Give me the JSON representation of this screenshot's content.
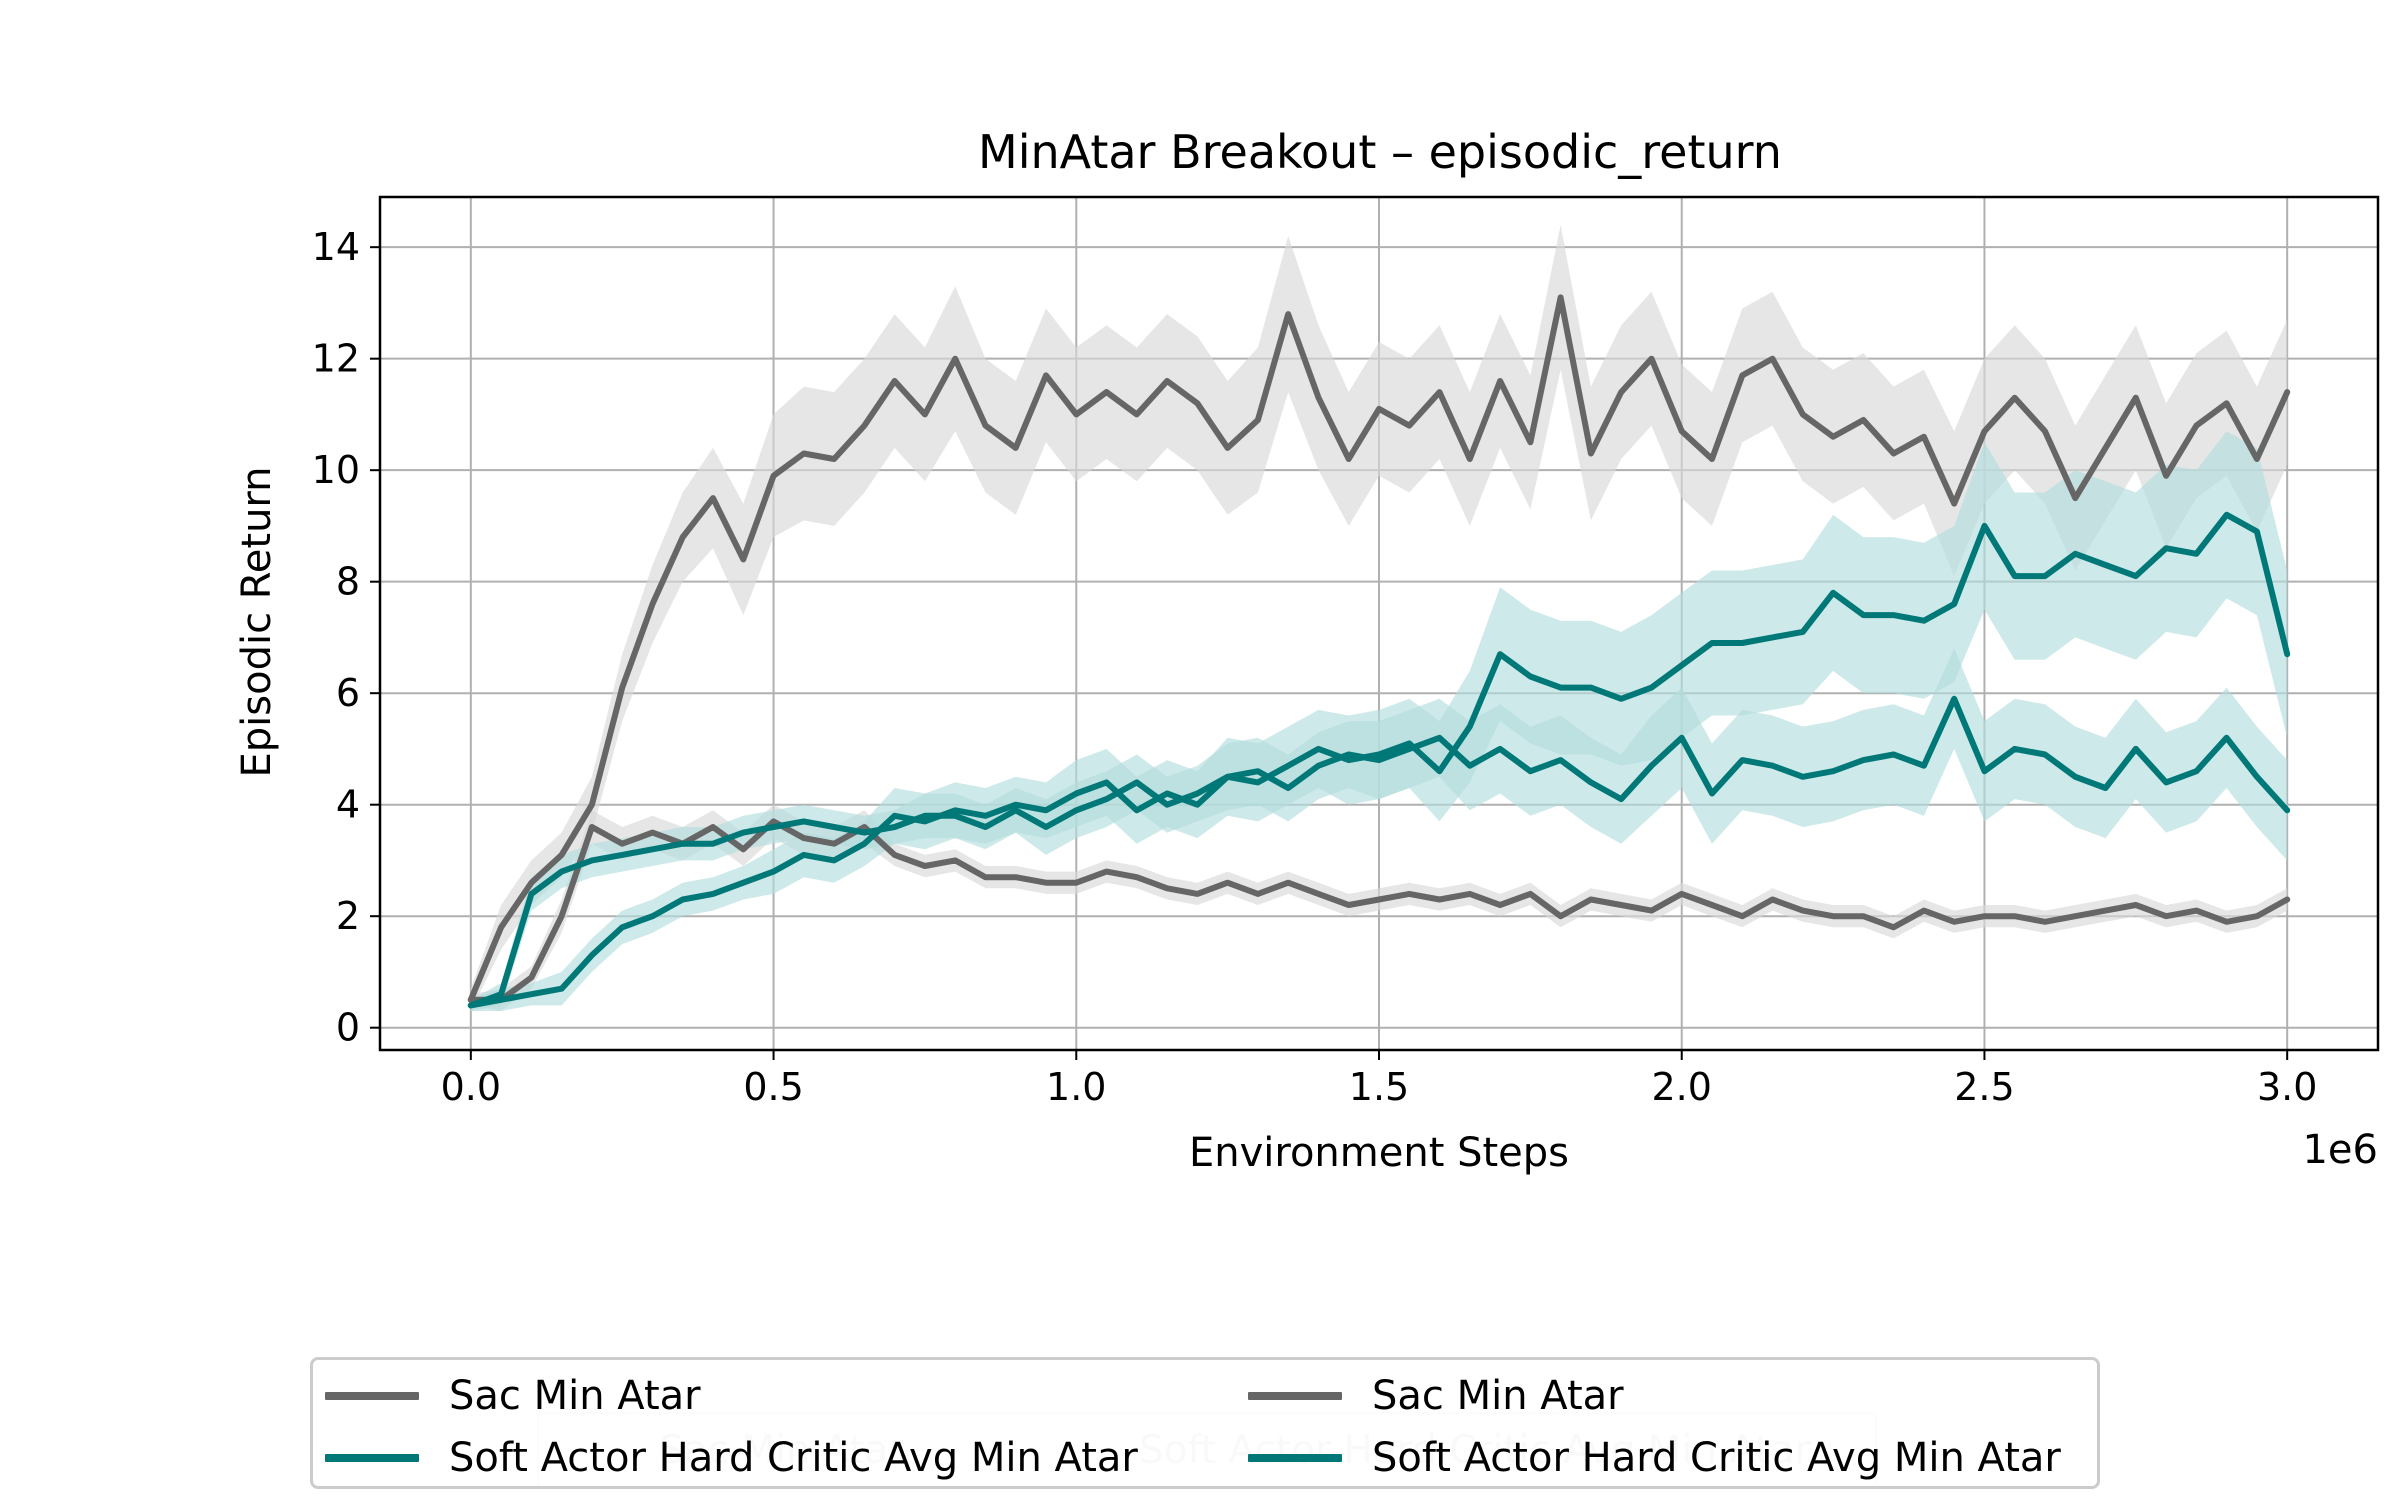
{
  "chart_data": {
    "type": "line",
    "title": "MinAtar Breakout – episodic_return",
    "xlabel": "Environment Steps",
    "ylabel": "Episodic Return",
    "x_multiplier_label": "1e6",
    "xlim": [
      -0.15,
      3.15
    ],
    "ylim": [
      -0.4,
      14.9
    ],
    "xticks": [
      0.0,
      0.5,
      1.0,
      1.5,
      2.0,
      2.5,
      3.0
    ],
    "xtick_labels": [
      "0.0",
      "0.5",
      "1.0",
      "1.5",
      "2.0",
      "2.5",
      "3.0"
    ],
    "yticks": [
      0,
      2,
      4,
      6,
      8,
      10,
      12,
      14
    ],
    "ytick_labels": [
      "0",
      "2",
      "4",
      "6",
      "8",
      "10",
      "12",
      "14"
    ],
    "grid": true,
    "legend_position": "bottom-center, outside plot",
    "series": [
      {
        "name": "Sac Min Atar",
        "color": "#666666",
        "band_color": "#d9d9d9",
        "x": [
          0.0,
          0.05,
          0.1,
          0.15,
          0.2,
          0.25,
          0.3,
          0.35,
          0.4,
          0.45,
          0.5,
          0.55,
          0.6,
          0.65,
          0.7,
          0.75,
          0.8,
          0.85,
          0.9,
          0.95,
          1.0,
          1.05,
          1.1,
          1.15,
          1.2,
          1.25,
          1.3,
          1.35,
          1.4,
          1.45,
          1.5,
          1.55,
          1.6,
          1.65,
          1.7,
          1.75,
          1.8,
          1.85,
          1.9,
          1.95,
          2.0,
          2.05,
          2.1,
          2.15,
          2.2,
          2.25,
          2.3,
          2.35,
          2.4,
          2.45,
          2.5,
          2.55,
          2.6,
          2.65,
          2.7,
          2.75,
          2.8,
          2.85,
          2.9,
          2.95,
          3.0
        ],
        "y": [
          0.5,
          1.8,
          2.6,
          3.1,
          4.0,
          6.1,
          7.6,
          8.8,
          9.5,
          8.4,
          9.9,
          10.3,
          10.2,
          10.8,
          11.6,
          11.0,
          12.0,
          10.8,
          10.4,
          11.7,
          11.0,
          11.4,
          11.0,
          11.6,
          11.2,
          10.4,
          10.9,
          12.8,
          11.3,
          10.2,
          11.1,
          10.8,
          11.4,
          10.2,
          11.6,
          10.5,
          13.1,
          10.3,
          11.4,
          12.0,
          10.7,
          10.2,
          11.7,
          12.0,
          11.0,
          10.6,
          10.9,
          10.3,
          10.6,
          9.4,
          10.7,
          11.3,
          10.7,
          9.5,
          10.4,
          11.3,
          9.9,
          10.8,
          11.2,
          10.2,
          11.4
        ],
        "band_halfwidth": [
          0.2,
          0.4,
          0.4,
          0.4,
          0.5,
          0.6,
          0.7,
          0.8,
          0.9,
          1.0,
          1.1,
          1.2,
          1.2,
          1.2,
          1.2,
          1.2,
          1.3,
          1.2,
          1.2,
          1.2,
          1.2,
          1.2,
          1.2,
          1.2,
          1.2,
          1.2,
          1.3,
          1.4,
          1.3,
          1.2,
          1.2,
          1.2,
          1.2,
          1.2,
          1.2,
          1.2,
          1.3,
          1.2,
          1.2,
          1.2,
          1.2,
          1.2,
          1.2,
          1.2,
          1.2,
          1.2,
          1.2,
          1.2,
          1.2,
          1.3,
          1.3,
          1.3,
          1.3,
          1.3,
          1.3,
          1.3,
          1.3,
          1.3,
          1.3,
          1.3,
          1.3
        ]
      },
      {
        "name": "Sac Min Atar",
        "color": "#666666",
        "band_color": "#d9d9d9",
        "x": [
          0.0,
          0.05,
          0.1,
          0.15,
          0.2,
          0.25,
          0.3,
          0.35,
          0.4,
          0.45,
          0.5,
          0.55,
          0.6,
          0.65,
          0.7,
          0.75,
          0.8,
          0.85,
          0.9,
          0.95,
          1.0,
          1.05,
          1.1,
          1.15,
          1.2,
          1.25,
          1.3,
          1.35,
          1.4,
          1.45,
          1.5,
          1.55,
          1.6,
          1.65,
          1.7,
          1.75,
          1.8,
          1.85,
          1.9,
          1.95,
          2.0,
          2.05,
          2.1,
          2.15,
          2.2,
          2.25,
          2.3,
          2.35,
          2.4,
          2.45,
          2.5,
          2.55,
          2.6,
          2.65,
          2.7,
          2.75,
          2.8,
          2.85,
          2.9,
          2.95,
          3.0
        ],
        "y": [
          0.5,
          0.5,
          0.9,
          2.0,
          3.6,
          3.3,
          3.5,
          3.3,
          3.6,
          3.2,
          3.7,
          3.4,
          3.3,
          3.6,
          3.1,
          2.9,
          3.0,
          2.7,
          2.7,
          2.6,
          2.6,
          2.8,
          2.7,
          2.5,
          2.4,
          2.6,
          2.4,
          2.6,
          2.4,
          2.2,
          2.3,
          2.4,
          2.3,
          2.4,
          2.2,
          2.4,
          2.0,
          2.3,
          2.2,
          2.1,
          2.4,
          2.2,
          2.0,
          2.3,
          2.1,
          2.0,
          2.0,
          1.8,
          2.1,
          1.9,
          2.0,
          2.0,
          1.9,
          2.0,
          2.1,
          2.2,
          2.0,
          2.1,
          1.9,
          2.0,
          2.3
        ],
        "band_halfwidth": [
          0.1,
          0.2,
          0.2,
          0.3,
          0.3,
          0.3,
          0.3,
          0.3,
          0.3,
          0.3,
          0.3,
          0.3,
          0.3,
          0.3,
          0.2,
          0.2,
          0.2,
          0.2,
          0.2,
          0.2,
          0.2,
          0.2,
          0.2,
          0.2,
          0.2,
          0.2,
          0.2,
          0.2,
          0.2,
          0.2,
          0.2,
          0.2,
          0.2,
          0.2,
          0.2,
          0.2,
          0.2,
          0.2,
          0.2,
          0.2,
          0.2,
          0.2,
          0.2,
          0.2,
          0.2,
          0.2,
          0.2,
          0.2,
          0.2,
          0.2,
          0.2,
          0.2,
          0.2,
          0.2,
          0.2,
          0.2,
          0.2,
          0.2,
          0.2,
          0.2,
          0.2
        ]
      },
      {
        "name": "Soft Actor Hard Critic Avg Min Atar",
        "color": "#007878",
        "band_color": "#b3dddd",
        "x": [
          0.0,
          0.05,
          0.1,
          0.15,
          0.2,
          0.25,
          0.3,
          0.35,
          0.4,
          0.45,
          0.5,
          0.55,
          0.6,
          0.65,
          0.7,
          0.75,
          0.8,
          0.85,
          0.9,
          0.95,
          1.0,
          1.05,
          1.1,
          1.15,
          1.2,
          1.25,
          1.3,
          1.35,
          1.4,
          1.45,
          1.5,
          1.55,
          1.6,
          1.65,
          1.7,
          1.75,
          1.8,
          1.85,
          1.9,
          1.95,
          2.0,
          2.05,
          2.1,
          2.15,
          2.2,
          2.25,
          2.3,
          2.35,
          2.4,
          2.45,
          2.5,
          2.55,
          2.6,
          2.65,
          2.7,
          2.75,
          2.8,
          2.85,
          2.9,
          2.95,
          3.0
        ],
        "y": [
          0.4,
          0.5,
          0.6,
          0.7,
          1.3,
          1.8,
          2.0,
          2.3,
          2.4,
          2.6,
          2.8,
          3.1,
          3.0,
          3.3,
          3.8,
          3.7,
          3.9,
          3.8,
          4.0,
          3.9,
          4.2,
          4.4,
          3.9,
          4.2,
          4.0,
          4.5,
          4.4,
          4.7,
          5.0,
          4.8,
          4.9,
          5.1,
          4.6,
          5.4,
          6.7,
          6.3,
          6.1,
          6.1,
          5.9,
          6.1,
          6.5,
          6.9,
          6.9,
          7.0,
          7.1,
          7.8,
          7.4,
          7.4,
          7.3,
          7.6,
          9.0,
          8.1,
          8.1,
          8.5,
          8.3,
          8.1,
          8.6,
          8.5,
          9.2,
          8.9,
          6.7
        ],
        "band_halfwidth": [
          0.1,
          0.2,
          0.2,
          0.3,
          0.3,
          0.3,
          0.3,
          0.3,
          0.3,
          0.3,
          0.4,
          0.4,
          0.4,
          0.4,
          0.5,
          0.5,
          0.5,
          0.5,
          0.5,
          0.5,
          0.6,
          0.6,
          0.6,
          0.6,
          0.6,
          0.7,
          0.7,
          0.7,
          0.7,
          0.8,
          0.8,
          0.8,
          0.9,
          1.0,
          1.2,
          1.2,
          1.2,
          1.2,
          1.2,
          1.3,
          1.3,
          1.3,
          1.3,
          1.3,
          1.3,
          1.4,
          1.4,
          1.4,
          1.4,
          1.4,
          1.5,
          1.5,
          1.5,
          1.5,
          1.5,
          1.5,
          1.5,
          1.5,
          1.5,
          1.5,
          1.5
        ]
      },
      {
        "name": "Soft Actor Hard Critic Avg Min Atar",
        "color": "#007878",
        "band_color": "#b3dddd",
        "x": [
          0.0,
          0.05,
          0.1,
          0.15,
          0.2,
          0.25,
          0.3,
          0.35,
          0.4,
          0.45,
          0.5,
          0.55,
          0.6,
          0.65,
          0.7,
          0.75,
          0.8,
          0.85,
          0.9,
          0.95,
          1.0,
          1.05,
          1.1,
          1.15,
          1.2,
          1.25,
          1.3,
          1.35,
          1.4,
          1.45,
          1.5,
          1.55,
          1.6,
          1.65,
          1.7,
          1.75,
          1.8,
          1.85,
          1.9,
          1.95,
          2.0,
          2.05,
          2.1,
          2.15,
          2.2,
          2.25,
          2.3,
          2.35,
          2.4,
          2.45,
          2.5,
          2.55,
          2.6,
          2.65,
          2.7,
          2.75,
          2.8,
          2.85,
          2.9,
          2.95,
          3.0
        ],
        "y": [
          0.4,
          0.6,
          2.4,
          2.8,
          3.0,
          3.1,
          3.2,
          3.3,
          3.3,
          3.5,
          3.6,
          3.7,
          3.6,
          3.5,
          3.6,
          3.8,
          3.8,
          3.6,
          3.9,
          3.6,
          3.9,
          4.1,
          4.4,
          4.0,
          4.2,
          4.5,
          4.6,
          4.3,
          4.7,
          4.9,
          4.8,
          5.0,
          5.2,
          4.7,
          5.0,
          4.6,
          4.8,
          4.4,
          4.1,
          4.7,
          5.2,
          4.2,
          4.8,
          4.7,
          4.5,
          4.6,
          4.8,
          4.9,
          4.7,
          5.9,
          4.6,
          5.0,
          4.9,
          4.5,
          4.3,
          5.0,
          4.4,
          4.6,
          5.2,
          4.5,
          3.9
        ],
        "band_halfwidth": [
          0.1,
          0.2,
          0.3,
          0.3,
          0.3,
          0.3,
          0.3,
          0.3,
          0.3,
          0.3,
          0.3,
          0.3,
          0.3,
          0.3,
          0.3,
          0.4,
          0.4,
          0.4,
          0.4,
          0.5,
          0.5,
          0.5,
          0.5,
          0.5,
          0.5,
          0.6,
          0.6,
          0.6,
          0.6,
          0.6,
          0.7,
          0.7,
          0.7,
          0.8,
          0.8,
          0.8,
          0.8,
          0.8,
          0.8,
          0.9,
          0.9,
          0.9,
          0.9,
          0.9,
          0.9,
          0.9,
          0.9,
          0.9,
          0.9,
          0.9,
          0.9,
          0.9,
          0.9,
          0.9,
          0.9,
          0.9,
          0.9,
          0.9,
          0.9,
          0.9,
          0.9
        ]
      }
    ]
  }
}
